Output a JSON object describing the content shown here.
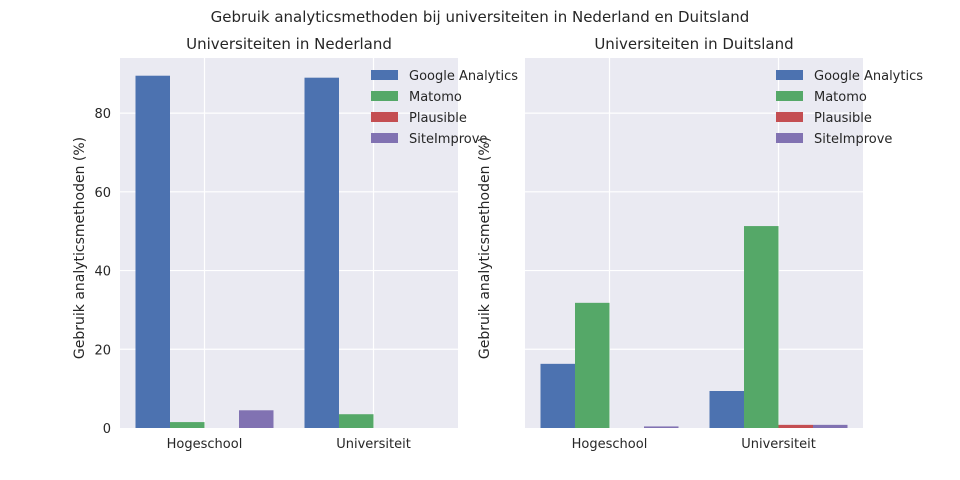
{
  "figure": {
    "suptitle": "Gebruik analyticsmethoden bij universiteiten in Nederland en Duitsland"
  },
  "colors": {
    "background_axes": "#eaeaf2",
    "grid": "#ffffff",
    "Google Analytics": "#4c72b0",
    "Matomo": "#55a868",
    "Plausible": "#c44e52",
    "SiteImprove": "#8172b2"
  },
  "chart_data": [
    {
      "type": "bar",
      "title": "Universiteiten in Nederland",
      "xlabel": "",
      "ylabel": "Gebruik analyticsmethoden (%)",
      "categories": [
        "Hogeschool",
        "Universiteit"
      ],
      "ylim": [
        0,
        94
      ],
      "yticks": [
        0,
        20,
        40,
        60,
        80
      ],
      "show_ytick_labels": true,
      "grid": true,
      "legend": "top-right",
      "series": [
        {
          "name": "Google Analytics",
          "values": [
            89.5,
            89.0
          ]
        },
        {
          "name": "Matomo",
          "values": [
            1.5,
            3.5
          ]
        },
        {
          "name": "Plausible",
          "values": [
            0,
            0
          ]
        },
        {
          "name": "SiteImprove",
          "values": [
            4.5,
            0
          ]
        }
      ]
    },
    {
      "type": "bar",
      "title": "Universiteiten in Duitsland",
      "xlabel": "",
      "ylabel": "Gebruik analyticsmethoden (%)",
      "categories": [
        "Hogeschool",
        "Universiteit"
      ],
      "ylim": [
        0,
        94
      ],
      "yticks": [
        0,
        20,
        40,
        60,
        80
      ],
      "show_ytick_labels": false,
      "grid": true,
      "legend": "top-right",
      "series": [
        {
          "name": "Google Analytics",
          "values": [
            16.3,
            9.4
          ]
        },
        {
          "name": "Matomo",
          "values": [
            31.8,
            51.3
          ]
        },
        {
          "name": "Plausible",
          "values": [
            0,
            0.8
          ]
        },
        {
          "name": "SiteImprove",
          "values": [
            0.4,
            0.8
          ]
        }
      ]
    }
  ]
}
